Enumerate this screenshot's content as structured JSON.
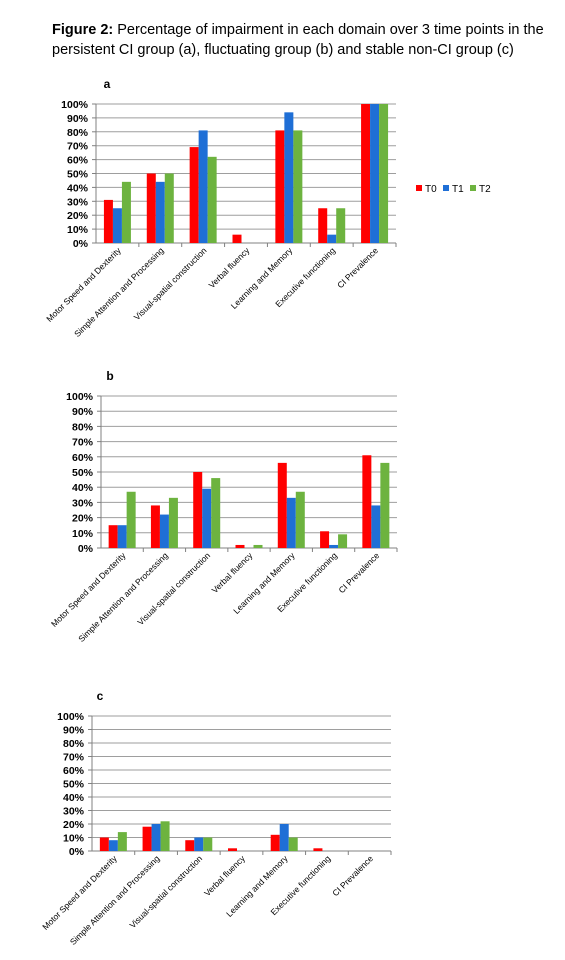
{
  "caption": {
    "label": "Figure 2:",
    "text": "Percentage of impairment in each domain over 3 time points in the persistent CI group (a), fluctuating group (b) and stable non-CI group (c)"
  },
  "colors": {
    "T0": "#ff0000",
    "T1": "#1f6fd6",
    "T2": "#6db33f",
    "grid": "#9e9e9e"
  },
  "chart_data": [
    {
      "type": "bar",
      "panel": "a",
      "categories": [
        "Motor Speed and Dexterity",
        "Simple Attention and Processing",
        "Visual-spatial construction",
        "Verbal fluency",
        "Learning and Memory",
        "Executive functioning",
        "CI Prevalence"
      ],
      "series": [
        {
          "name": "T0",
          "values": [
            31,
            50,
            69,
            6,
            81,
            25,
            100
          ]
        },
        {
          "name": "T1",
          "values": [
            25,
            44,
            81,
            0,
            94,
            6,
            100
          ]
        },
        {
          "name": "T2",
          "values": [
            44,
            50,
            62,
            0,
            81,
            25,
            100
          ]
        }
      ],
      "ylim": [
        0,
        100
      ],
      "yticks": [
        "0%",
        "10%",
        "20%",
        "30%",
        "40%",
        "50%",
        "60%",
        "70%",
        "80%",
        "90%",
        "100%"
      ],
      "grid": true,
      "legend": "right"
    },
    {
      "type": "bar",
      "panel": "b",
      "categories": [
        "Motor Speed and Dexterity",
        "Simple Attention and Processing",
        "Visual-spatial construction",
        "Verbal fluency",
        "Learning and Memory",
        "Executive functioning",
        "CI Prevalence"
      ],
      "series": [
        {
          "name": "T0",
          "values": [
            15,
            28,
            50,
            2,
            56,
            11,
            61
          ]
        },
        {
          "name": "T1",
          "values": [
            15,
            22,
            39,
            0,
            33,
            2,
            28
          ]
        },
        {
          "name": "T2",
          "values": [
            37,
            33,
            46,
            2,
            37,
            9,
            56
          ]
        }
      ],
      "ylim": [
        0,
        100
      ],
      "yticks": [
        "0%",
        "10%",
        "20%",
        "30%",
        "40%",
        "50%",
        "60%",
        "70%",
        "80%",
        "90%",
        "100%"
      ],
      "grid": true
    },
    {
      "type": "bar",
      "panel": "c",
      "categories": [
        "Motor Speed and Dexterity",
        "Simple Attention and Processing",
        "Visual-spatial construction",
        "Verbal fluency",
        "Learning and Memory",
        "Executive functioning",
        "CI Prevalence"
      ],
      "series": [
        {
          "name": "T0",
          "values": [
            10,
            18,
            8,
            2,
            12,
            2,
            0
          ]
        },
        {
          "name": "T1",
          "values": [
            8,
            20,
            10,
            0,
            20,
            0,
            0
          ]
        },
        {
          "name": "T2",
          "values": [
            14,
            22,
            10,
            0,
            10,
            0,
            0
          ]
        }
      ],
      "ylim": [
        0,
        100
      ],
      "yticks": [
        "0%",
        "10%",
        "20%",
        "30%",
        "40%",
        "50%",
        "60%",
        "70%",
        "80%",
        "90%",
        "100%"
      ],
      "grid": true
    }
  ]
}
